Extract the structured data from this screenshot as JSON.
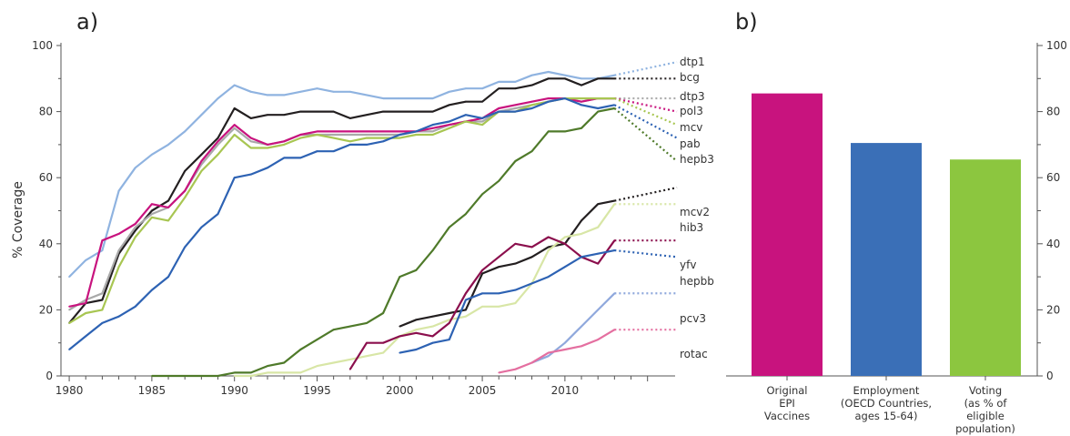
{
  "panels": {
    "a_label": "a)",
    "b_label": "b)"
  },
  "chart_data": [
    {
      "type": "line",
      "panel": "a)",
      "ylabel": "% Coverage",
      "xlabel": "",
      "xlim": [
        1979.5,
        2017
      ],
      "ylim": [
        0,
        100
      ],
      "xticks": [
        1980,
        1985,
        1990,
        1995,
        2000,
        2005,
        2010
      ],
      "yticks": [
        0,
        20,
        40,
        60,
        80,
        100
      ],
      "grid": false,
      "series": [
        {
          "name": "dtp1",
          "color": "#8fb3e0",
          "x": [
            1980,
            1981,
            1982,
            1983,
            1984,
            1985,
            1986,
            1987,
            1988,
            1989,
            1990,
            1991,
            1992,
            1993,
            1994,
            1995,
            1996,
            1997,
            1998,
            1999,
            2000,
            2001,
            2002,
            2003,
            2004,
            2005,
            2006,
            2007,
            2008,
            2009,
            2010,
            2011,
            2012,
            2013
          ],
          "y": [
            30,
            35,
            38,
            56,
            63,
            67,
            70,
            74,
            79,
            84,
            88,
            86,
            85,
            85,
            86,
            87,
            86,
            86,
            85,
            84,
            84,
            84,
            84,
            86,
            87,
            87,
            89,
            89,
            91,
            92,
            91,
            90,
            90,
            91
          ],
          "projection": [
            95
          ]
        },
        {
          "name": "bcg",
          "color": "#231f20",
          "x": [
            1980,
            1981,
            1982,
            1983,
            1984,
            1985,
            1986,
            1987,
            1988,
            1989,
            1990,
            1991,
            1992,
            1993,
            1994,
            1995,
            1996,
            1997,
            1998,
            1999,
            2000,
            2001,
            2002,
            2003,
            2004,
            2005,
            2006,
            2007,
            2008,
            2009,
            2010,
            2011,
            2012,
            2013
          ],
          "y": [
            16,
            22,
            23,
            37,
            44,
            50,
            53,
            62,
            67,
            72,
            81,
            78,
            79,
            79,
            80,
            80,
            80,
            78,
            79,
            80,
            80,
            80,
            80,
            82,
            83,
            83,
            87,
            87,
            88,
            90,
            90,
            88,
            90,
            90
          ],
          "projection": [
            90
          ]
        },
        {
          "name": "dtp3",
          "color": "#a9a9a9",
          "x": [
            1980,
            1981,
            1982,
            1983,
            1984,
            1985,
            1986,
            1987,
            1988,
            1989,
            1990,
            1991,
            1992,
            1993,
            1994,
            1995,
            1996,
            1997,
            1998,
            1999,
            2000,
            2001,
            2002,
            2003,
            2004,
            2005,
            2006,
            2007,
            2008,
            2009,
            2010,
            2011,
            2012,
            2013
          ],
          "y": [
            20,
            23,
            25,
            38,
            45,
            49,
            51,
            56,
            64,
            70,
            75,
            71,
            70,
            71,
            73,
            73,
            73,
            73,
            73,
            73,
            73,
            74,
            74,
            76,
            77,
            77,
            80,
            81,
            82,
            83,
            84,
            83,
            84,
            84
          ],
          "projection": [
            84
          ]
        },
        {
          "name": "pol3",
          "color": "#c8137e",
          "x": [
            1980,
            1981,
            1982,
            1983,
            1984,
            1985,
            1986,
            1987,
            1988,
            1989,
            1990,
            1991,
            1992,
            1993,
            1994,
            1995,
            1996,
            1997,
            1998,
            1999,
            2000,
            2001,
            2002,
            2003,
            2004,
            2005,
            2006,
            2007,
            2008,
            2009,
            2010,
            2011,
            2012,
            2013
          ],
          "y": [
            21,
            22,
            41,
            43,
            46,
            52,
            51,
            56,
            65,
            71,
            76,
            72,
            70,
            71,
            73,
            74,
            74,
            74,
            74,
            74,
            74,
            74,
            75,
            76,
            77,
            78,
            81,
            82,
            83,
            84,
            84,
            83,
            84,
            84
          ],
          "projection": [
            80
          ]
        },
        {
          "name": "mcv",
          "color": "#a8c652",
          "x": [
            1980,
            1981,
            1982,
            1983,
            1984,
            1985,
            1986,
            1987,
            1988,
            1989,
            1990,
            1991,
            1992,
            1993,
            1994,
            1995,
            1996,
            1997,
            1998,
            1999,
            2000,
            2001,
            2002,
            2003,
            2004,
            2005,
            2006,
            2007,
            2008,
            2009,
            2010,
            2011,
            2012,
            2013
          ],
          "y": [
            16,
            19,
            20,
            33,
            42,
            48,
            47,
            54,
            62,
            67,
            73,
            69,
            69,
            70,
            72,
            73,
            72,
            71,
            72,
            72,
            72,
            73,
            73,
            75,
            77,
            76,
            80,
            80,
            82,
            83,
            84,
            84,
            84,
            84
          ],
          "projection": [
            76
          ]
        },
        {
          "name": "pab",
          "color": "#2d62b3",
          "x": [
            1980,
            1981,
            1982,
            1983,
            1984,
            1985,
            1986,
            1987,
            1988,
            1989,
            1990,
            1991,
            1992,
            1993,
            1994,
            1995,
            1996,
            1997,
            1998,
            1999,
            2000,
            2001,
            2002,
            2003,
            2004,
            2005,
            2006,
            2007,
            2008,
            2009,
            2010,
            2011,
            2012,
            2013
          ],
          "y": [
            8,
            12,
            16,
            18,
            21,
            26,
            30,
            39,
            45,
            49,
            60,
            61,
            63,
            66,
            66,
            68,
            68,
            70,
            70,
            71,
            73,
            74,
            76,
            77,
            79,
            78,
            80,
            80,
            81,
            83,
            84,
            82,
            81,
            82
          ],
          "projection": [
            72
          ]
        },
        {
          "name": "hepb3",
          "color": "#4f7a2a",
          "x": [
            1985,
            1986,
            1987,
            1988,
            1989,
            1990,
            1991,
            1992,
            1993,
            1994,
            1995,
            1996,
            1997,
            1998,
            1999,
            2000,
            2001,
            2002,
            2003,
            2004,
            2005,
            2006,
            2007,
            2008,
            2009,
            2010,
            2011,
            2012,
            2013
          ],
          "y": [
            0,
            0,
            0,
            0,
            0,
            1,
            1,
            3,
            4,
            8,
            11,
            14,
            15,
            16,
            19,
            30,
            32,
            38,
            45,
            49,
            55,
            59,
            65,
            68,
            74,
            74,
            75,
            80,
            81
          ],
          "projection": [
            65
          ]
        },
        {
          "name": "mcv2",
          "color": "#231f20",
          "x": [
            2000,
            2001,
            2002,
            2003,
            2004,
            2005,
            2006,
            2007,
            2008,
            2009,
            2010,
            2011,
            2012,
            2013
          ],
          "y": [
            15,
            17,
            18,
            19,
            20,
            31,
            33,
            34,
            36,
            39,
            40,
            47,
            52,
            53
          ],
          "projection": [
            57
          ]
        },
        {
          "name": "hib3",
          "color": "#d8e6a6",
          "x": [
            1990,
            1991,
            1992,
            1993,
            1994,
            1995,
            1996,
            1997,
            1998,
            1999,
            2000,
            2001,
            2002,
            2003,
            2004,
            2005,
            2006,
            2007,
            2008,
            2009,
            2010,
            2011,
            2012,
            2013
          ],
          "y": [
            0,
            0,
            1,
            1,
            1,
            3,
            4,
            5,
            6,
            7,
            12,
            14,
            15,
            17,
            18,
            21,
            21,
            22,
            28,
            38,
            42,
            43,
            45,
            52
          ],
          "projection": [
            52
          ]
        },
        {
          "name": "yfv",
          "color": "#8b0f4d",
          "x": [
            1997,
            1998,
            1999,
            2000,
            2001,
            2002,
            2003,
            2004,
            2005,
            2006,
            2007,
            2008,
            2009,
            2010,
            2011,
            2012,
            2013
          ],
          "y": [
            2,
            10,
            10,
            12,
            13,
            12,
            16,
            25,
            32,
            36,
            40,
            39,
            42,
            40,
            36,
            34,
            41
          ],
          "projection": [
            41
          ]
        },
        {
          "name": "hepbb",
          "color": "#2d62b3",
          "x": [
            2000,
            2001,
            2002,
            2003,
            2004,
            2005,
            2006,
            2007,
            2008,
            2009,
            2010,
            2011,
            2012,
            2013
          ],
          "y": [
            7,
            8,
            10,
            11,
            23,
            25,
            25,
            26,
            28,
            30,
            33,
            36,
            37,
            38
          ],
          "projection": [
            36
          ]
        },
        {
          "name": "pcv3",
          "color": "#8fa8dc",
          "x": [
            2008,
            2009,
            2010,
            2011,
            2012,
            2013
          ],
          "y": [
            4,
            6,
            10,
            15,
            20,
            25
          ],
          "projection": [
            25
          ]
        },
        {
          "name": "rotac",
          "color": "#e46fa0",
          "x": [
            2006,
            2007,
            2008,
            2009,
            2010,
            2011,
            2012,
            2013
          ],
          "y": [
            1,
            2,
            4,
            7,
            8,
            9,
            11,
            14
          ],
          "projection": [
            14
          ]
        }
      ]
    },
    {
      "type": "bar",
      "panel": "b)",
      "ylim": [
        0,
        100
      ],
      "yticks": [
        0,
        20,
        40,
        60,
        80,
        100
      ],
      "grid": false,
      "categories": [
        [
          "Original",
          "EPI",
          "Vaccines"
        ],
        [
          "Employment",
          "(OECD Countries,",
          "ages 15-64)"
        ],
        [
          "Voting",
          "(as % of",
          "eligible",
          "population)"
        ]
      ],
      "values": [
        85.5,
        70.5,
        65.5
      ],
      "colors": [
        "#c8137e",
        "#3a6fb7",
        "#8cc63f"
      ]
    }
  ]
}
